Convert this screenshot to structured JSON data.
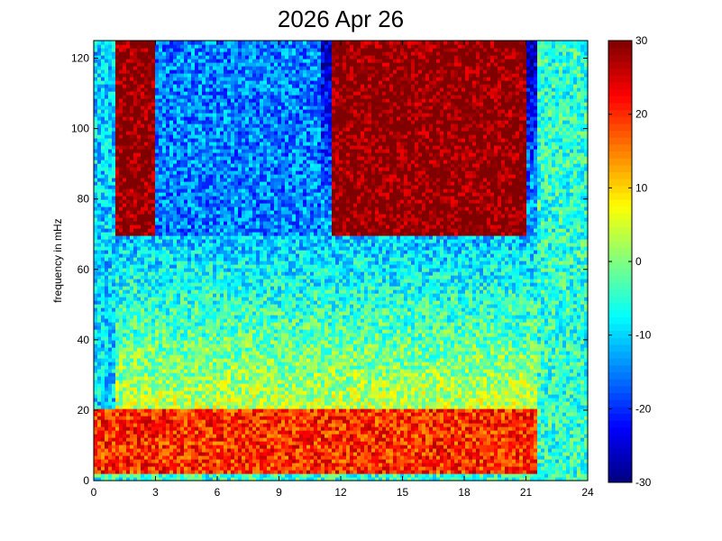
{
  "chart_data": {
    "type": "heatmap",
    "title": "2026 Apr 26",
    "xlabel": "",
    "ylabel": "frequency in mHz",
    "xlim": [
      0,
      24
    ],
    "ylim": [
      0,
      125
    ],
    "x_ticks": [
      "0",
      "3",
      "6",
      "9",
      "12",
      "15",
      "18",
      "21",
      "24"
    ],
    "y_ticks": [
      "0",
      "20",
      "40",
      "60",
      "80",
      "100",
      "120"
    ],
    "colorbar": {
      "range": [
        -30,
        30
      ],
      "ticks": [
        "-30",
        "-20",
        "-10",
        "0",
        "10",
        "20",
        "30"
      ],
      "colormap": "jet"
    },
    "grid": false,
    "summary_regions": [
      {
        "x": [
          0,
          1
        ],
        "y": [
          0,
          125
        ],
        "level_db": -10
      },
      {
        "x": [
          1,
          3
        ],
        "y": [
          70,
          125
        ],
        "level_db": 30
      },
      {
        "x": [
          11.5,
          21
        ],
        "y": [
          70,
          125
        ],
        "level_db": 30
      },
      {
        "x": [
          3,
          11
        ],
        "y": [
          70,
          125
        ],
        "level_db": -15
      },
      {
        "x": [
          0,
          24
        ],
        "y": [
          0,
          20
        ],
        "level_db": 20
      },
      {
        "x": [
          21.5,
          24
        ],
        "y": [
          0,
          125
        ],
        "level_db": -5
      }
    ]
  }
}
